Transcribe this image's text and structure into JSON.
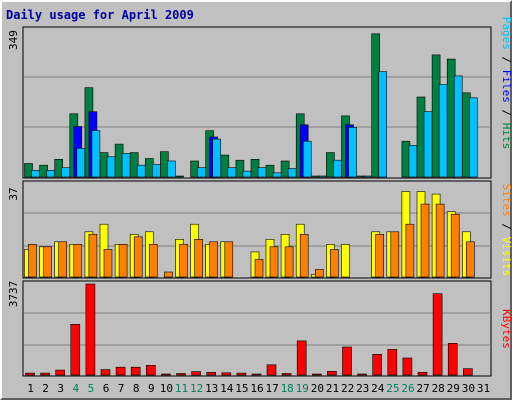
{
  "chart_data": {
    "type": "bar",
    "title": "Daily usage for April 2009",
    "categories": [
      "1",
      "2",
      "3",
      "4",
      "5",
      "6",
      "7",
      "8",
      "9",
      "10",
      "11",
      "12",
      "13",
      "14",
      "15",
      "16",
      "17",
      "18",
      "19",
      "20",
      "21",
      "22",
      "23",
      "24",
      "25",
      "26",
      "27",
      "28",
      "29",
      "30",
      "31"
    ],
    "weekend_days": [
      "4",
      "5",
      "11",
      "12",
      "18",
      "19",
      "25",
      "26"
    ],
    "panels": [
      {
        "name": "hits-files-pages",
        "ymax": 349,
        "ymax_label": "349",
        "series": [
          {
            "name": "Hits",
            "color": "#008040",
            "values": [
              32,
              28,
              42,
              150,
              212,
              58,
              78,
              58,
              44,
              60,
              2,
              38,
              110,
              52,
              40,
              42,
              28,
              38,
              150,
              2,
              58,
              145,
              2,
              340,
              0,
              85,
              190,
              290,
              280,
              200,
              0
            ]
          },
          {
            "name": "Files",
            "color": "#0000ff",
            "values": [
              0,
              0,
              0,
              120,
              155,
              0,
              0,
              0,
              0,
              0,
              0,
              0,
              95,
              0,
              0,
              0,
              0,
              0,
              124,
              0,
              0,
              124,
              0,
              0,
              0,
              0,
              0,
              0,
              0,
              0,
              0
            ]
          },
          {
            "name": "Pages",
            "color": "#00c0ff",
            "values": [
              16,
              16,
              22,
              68,
              110,
              48,
              56,
              28,
              30,
              38,
              0,
              22,
              90,
              22,
              14,
              22,
              10,
              20,
              85,
              2,
              40,
              118,
              2,
              250,
              0,
              75,
              155,
              220,
              240,
              188,
              0
            ]
          }
        ]
      },
      {
        "name": "visits-sites",
        "ymax": 37,
        "ymax_label": "37",
        "series": [
          {
            "name": "Visits",
            "color": "#ffff00",
            "values": [
              11,
              12,
              14,
              13,
              18,
              21,
              13,
              17,
              18,
              0,
              15,
              21,
              13,
              14,
              0,
              10,
              15,
              17,
              21,
              1,
              13,
              13,
              0,
              18,
              18,
              34,
              34,
              33,
              26,
              18,
              0
            ]
          },
          {
            "name": "Sites",
            "color": "#ff8000",
            "values": [
              13,
              12,
              14,
              13,
              17,
              11,
              13,
              16,
              13,
              2,
              13,
              15,
              14,
              14,
              0,
              7,
              12,
              12,
              17,
              3,
              11,
              0,
              0,
              17,
              18,
              21,
              29,
              29,
              25,
              14,
              0
            ]
          }
        ]
      },
      {
        "name": "kbytes",
        "ymax": 3737,
        "ymax_label": "3737",
        "series": [
          {
            "name": "KBytes",
            "color": "#ff0000",
            "values": [
              80,
              80,
              200,
              2080,
              3737,
              220,
              320,
              320,
              400,
              30,
              60,
              140,
              110,
              90,
              80,
              30,
              420,
              60,
              1400,
              30,
              150,
              1150,
              30,
              850,
              1050,
              700,
              110,
              3340,
              1300,
              260,
              0
            ]
          }
        ]
      }
    ],
    "right_labels": {
      "top": [
        {
          "text": "Pages",
          "color": "#00c0ff"
        },
        {
          "text": " / ",
          "color": "#000000"
        },
        {
          "text": "Files",
          "color": "#0000ff"
        },
        {
          "text": " / ",
          "color": "#000000"
        },
        {
          "text": "Hits",
          "color": "#008040"
        }
      ],
      "middle": [
        {
          "text": "Sites",
          "color": "#ff8000"
        },
        {
          "text": " / ",
          "color": "#000000"
        },
        {
          "text": "Visits",
          "color": "#ffff00"
        }
      ],
      "bottom": [
        {
          "text": "KBytes",
          "color": "#ff0000"
        }
      ]
    },
    "weekday_label_color": "#000000",
    "weekend_label_color": "#00805c",
    "grid": true
  }
}
